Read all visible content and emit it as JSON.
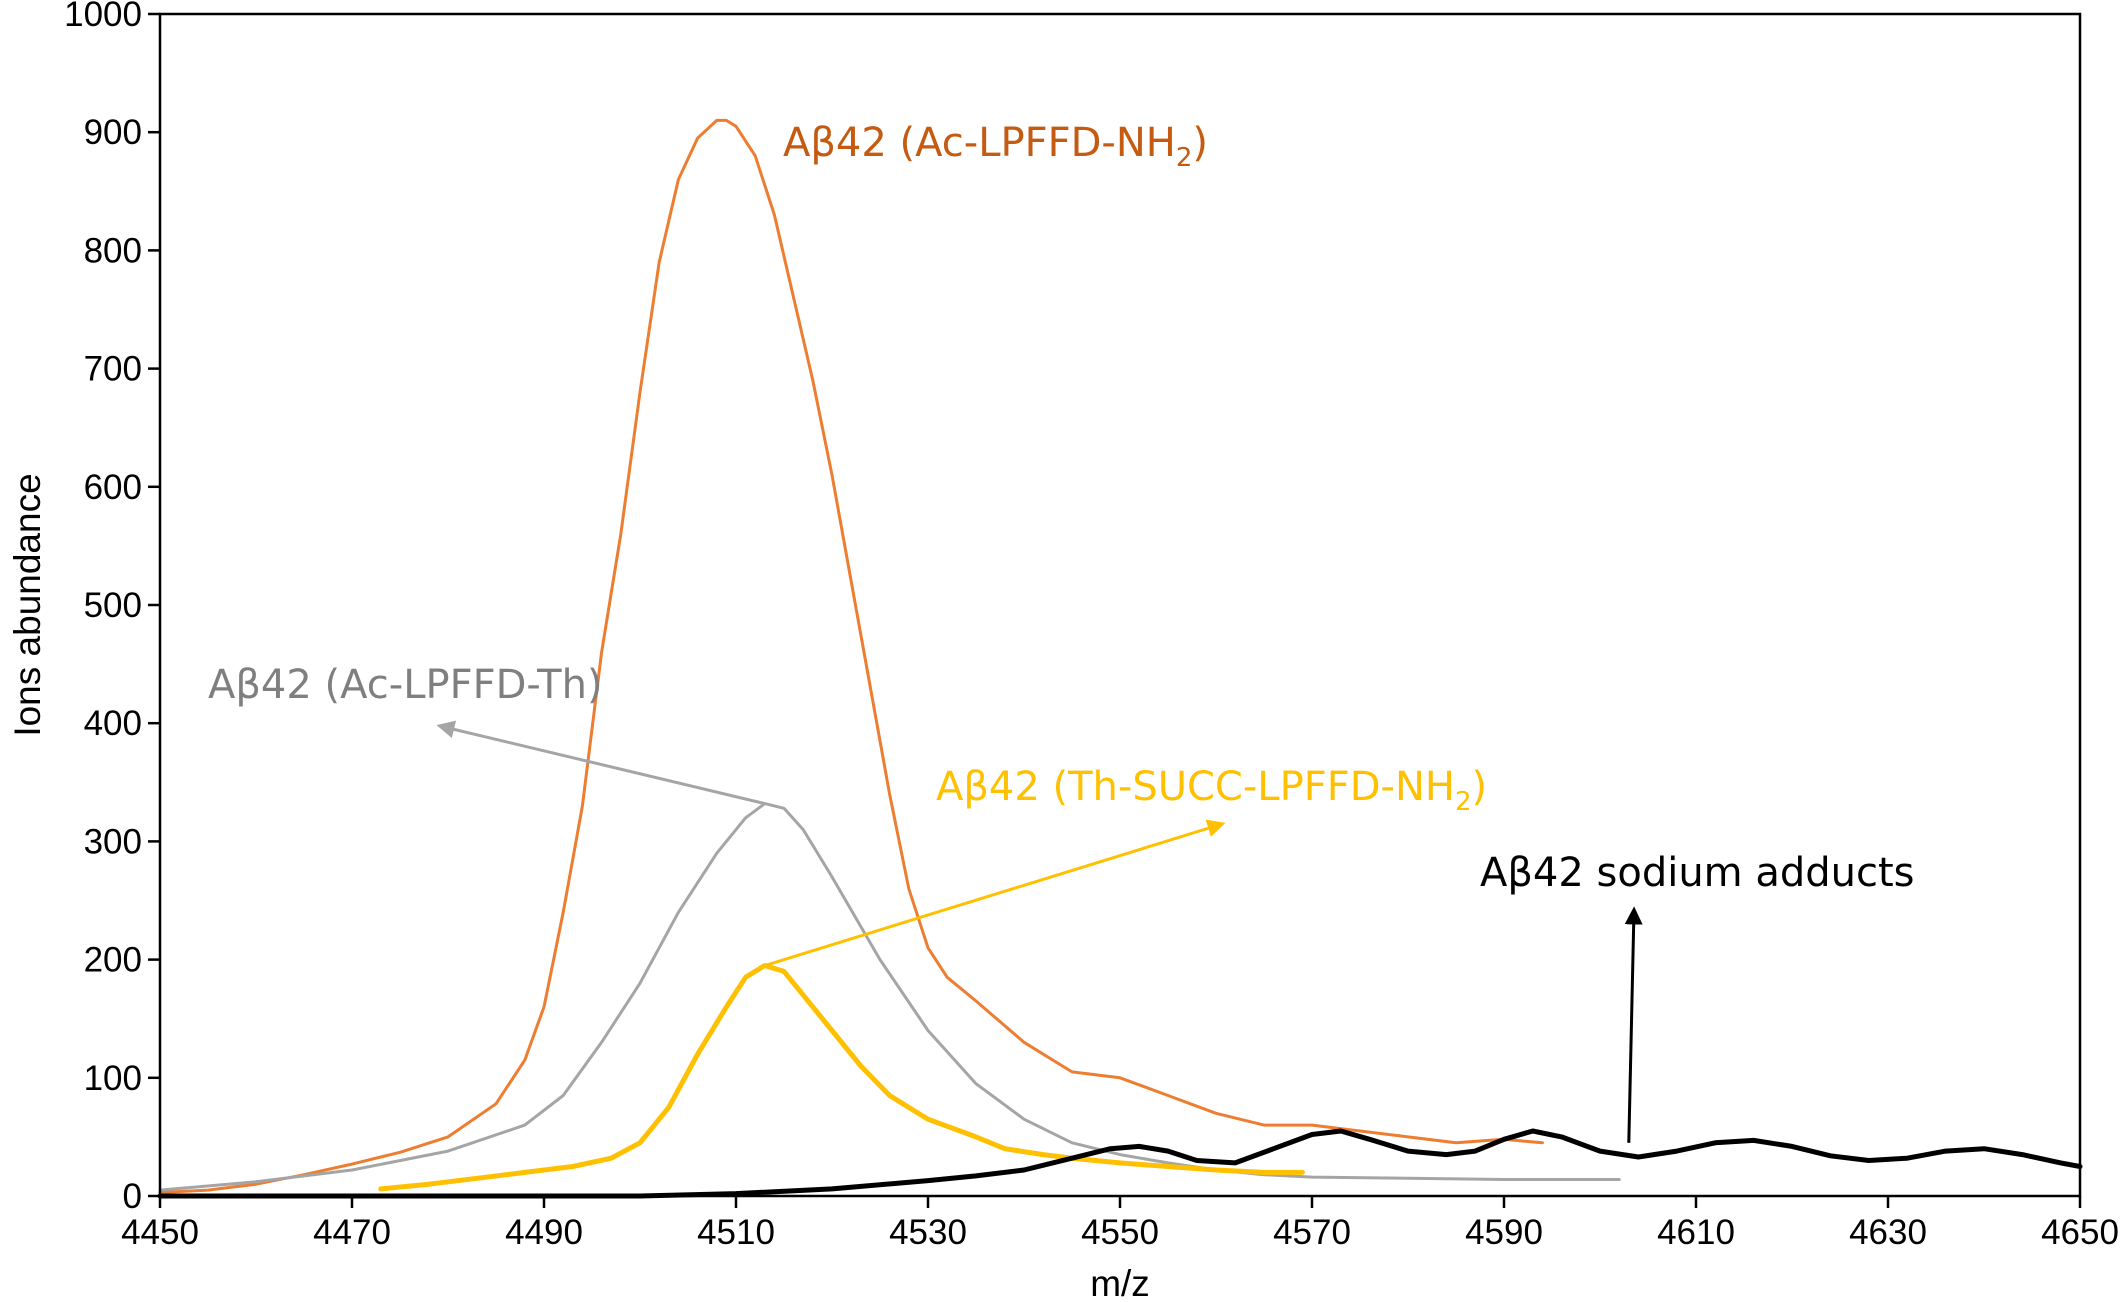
{
  "chart_data": {
    "type": "line",
    "title": "",
    "xlabel": "m/z",
    "ylabel": "Ions abundance",
    "xlim": [
      4450,
      4650
    ],
    "ylim": [
      0,
      1000
    ],
    "xticks": [
      4450,
      4470,
      4490,
      4510,
      4530,
      4550,
      4570,
      4590,
      4610,
      4630,
      4650
    ],
    "yticks": [
      0,
      100,
      200,
      300,
      400,
      500,
      600,
      700,
      800,
      900,
      1000
    ],
    "grid": false,
    "legend": "none",
    "series": [
      {
        "key": "ac_lpffd_nh2",
        "color": "#ed7d31",
        "width": 3,
        "points": [
          [
            4450,
            3
          ],
          [
            4455,
            5
          ],
          [
            4460,
            10
          ],
          [
            4465,
            18
          ],
          [
            4470,
            27
          ],
          [
            4475,
            37
          ],
          [
            4480,
            50
          ],
          [
            4485,
            78
          ],
          [
            4488,
            115
          ],
          [
            4490,
            160
          ],
          [
            4492,
            240
          ],
          [
            4494,
            330
          ],
          [
            4496,
            460
          ],
          [
            4498,
            560
          ],
          [
            4500,
            680
          ],
          [
            4502,
            790
          ],
          [
            4504,
            860
          ],
          [
            4506,
            895
          ],
          [
            4508,
            910
          ],
          [
            4509,
            910
          ],
          [
            4510,
            905
          ],
          [
            4512,
            880
          ],
          [
            4514,
            830
          ],
          [
            4516,
            760
          ],
          [
            4518,
            690
          ],
          [
            4520,
            610
          ],
          [
            4522,
            520
          ],
          [
            4524,
            430
          ],
          [
            4526,
            340
          ],
          [
            4528,
            260
          ],
          [
            4530,
            210
          ],
          [
            4532,
            185
          ],
          [
            4535,
            165
          ],
          [
            4540,
            130
          ],
          [
            4545,
            105
          ],
          [
            4550,
            100
          ],
          [
            4555,
            85
          ],
          [
            4560,
            70
          ],
          [
            4565,
            60
          ],
          [
            4570,
            60
          ],
          [
            4575,
            55
          ],
          [
            4580,
            50
          ],
          [
            4585,
            45
          ],
          [
            4590,
            48
          ],
          [
            4594,
            45
          ]
        ]
      },
      {
        "key": "ac_lpffd_th",
        "color": "#a5a5a5",
        "width": 3,
        "points": [
          [
            4450,
            5
          ],
          [
            4460,
            12
          ],
          [
            4470,
            22
          ],
          [
            4480,
            38
          ],
          [
            4488,
            60
          ],
          [
            4492,
            85
          ],
          [
            4496,
            130
          ],
          [
            4500,
            180
          ],
          [
            4504,
            240
          ],
          [
            4508,
            290
          ],
          [
            4511,
            320
          ],
          [
            4513,
            332
          ],
          [
            4515,
            328
          ],
          [
            4517,
            310
          ],
          [
            4520,
            270
          ],
          [
            4525,
            200
          ],
          [
            4530,
            140
          ],
          [
            4535,
            95
          ],
          [
            4540,
            65
          ],
          [
            4545,
            45
          ],
          [
            4550,
            35
          ],
          [
            4555,
            28
          ],
          [
            4560,
            22
          ],
          [
            4565,
            18
          ],
          [
            4570,
            16
          ],
          [
            4580,
            15
          ],
          [
            4590,
            14
          ],
          [
            4602,
            14
          ]
        ]
      },
      {
        "key": "th_succ_lpffd_nh2",
        "color": "#ffc000",
        "width": 5,
        "points": [
          [
            4473,
            6
          ],
          [
            4478,
            10
          ],
          [
            4483,
            15
          ],
          [
            4488,
            20
          ],
          [
            4493,
            25
          ],
          [
            4497,
            32
          ],
          [
            4500,
            45
          ],
          [
            4503,
            75
          ],
          [
            4506,
            120
          ],
          [
            4509,
            160
          ],
          [
            4511,
            185
          ],
          [
            4513,
            195
          ],
          [
            4515,
            190
          ],
          [
            4517,
            170
          ],
          [
            4520,
            140
          ],
          [
            4523,
            110
          ],
          [
            4526,
            85
          ],
          [
            4530,
            65
          ],
          [
            4535,
            50
          ],
          [
            4538,
            40
          ],
          [
            4542,
            35
          ],
          [
            4545,
            32
          ],
          [
            4550,
            28
          ],
          [
            4555,
            25
          ],
          [
            4560,
            22
          ],
          [
            4565,
            20
          ],
          [
            4569,
            20
          ]
        ]
      },
      {
        "key": "sodium_adducts",
        "color": "#000000",
        "width": 5,
        "points": [
          [
            4450,
            0
          ],
          [
            4500,
            0
          ],
          [
            4510,
            2
          ],
          [
            4520,
            6
          ],
          [
            4530,
            13
          ],
          [
            4535,
            17
          ],
          [
            4540,
            22
          ],
          [
            4545,
            32
          ],
          [
            4549,
            40
          ],
          [
            4552,
            42
          ],
          [
            4555,
            38
          ],
          [
            4558,
            30
          ],
          [
            4562,
            28
          ],
          [
            4566,
            40
          ],
          [
            4570,
            52
          ],
          [
            4573,
            55
          ],
          [
            4576,
            48
          ],
          [
            4580,
            38
          ],
          [
            4584,
            35
          ],
          [
            4587,
            38
          ],
          [
            4590,
            48
          ],
          [
            4593,
            55
          ],
          [
            4596,
            50
          ],
          [
            4600,
            38
          ],
          [
            4604,
            33
          ],
          [
            4608,
            38
          ],
          [
            4612,
            45
          ],
          [
            4616,
            47
          ],
          [
            4620,
            42
          ],
          [
            4624,
            34
          ],
          [
            4628,
            30
          ],
          [
            4632,
            32
          ],
          [
            4636,
            38
          ],
          [
            4640,
            40
          ],
          [
            4644,
            35
          ],
          [
            4648,
            28
          ],
          [
            4650,
            25
          ]
        ]
      }
    ],
    "annotations": [
      {
        "key": "ac_nh2",
        "main": "Aβ42 (Ac-LPFFD-NH",
        "sub": "2",
        "tail": ")",
        "color": "#c55a11"
      },
      {
        "key": "ac_th",
        "main": "Aβ42 (Ac-LPFFD-Th)",
        "sub": "",
        "tail": "",
        "color": "#7f7f7f"
      },
      {
        "key": "th_succ",
        "main": "Aβ42 (Th-SUCC-LPFFD-NH",
        "sub": "2",
        "tail": ")",
        "color": "#ffc000"
      },
      {
        "key": "sodium",
        "main": "Aβ42 sodium adducts",
        "sub": "",
        "tail": "",
        "color": "#000000"
      }
    ]
  }
}
